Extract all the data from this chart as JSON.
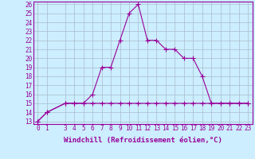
{
  "xlabel": "Windchill (Refroidissement éolien,°C)",
  "background_color": "#cceeff",
  "line_color": "#990099",
  "grid_color": "#aabbcc",
  "x_temp": [
    0,
    1,
    3,
    4,
    5,
    6,
    7,
    8,
    9,
    10,
    11,
    12,
    13,
    14,
    15,
    16,
    17,
    18,
    19,
    20,
    21,
    22,
    23
  ],
  "y_temp": [
    13,
    14,
    15,
    15,
    15,
    16,
    19,
    19,
    22,
    25,
    26,
    22,
    22,
    21,
    21,
    20,
    20,
    18,
    15,
    15,
    15,
    15,
    15
  ],
  "x_wind": [
    0,
    1,
    3,
    4,
    5,
    6,
    7,
    8,
    9,
    10,
    11,
    12,
    13,
    14,
    15,
    16,
    17,
    18,
    19,
    20,
    21,
    22,
    23
  ],
  "y_wind": [
    13,
    14,
    15,
    15,
    15,
    15,
    15,
    15,
    15,
    15,
    15,
    15,
    15,
    15,
    15,
    15,
    15,
    15,
    15,
    15,
    15,
    15,
    15
  ],
  "ylim": [
    13,
    26
  ],
  "xlim": [
    0,
    23
  ],
  "yticks": [
    13,
    14,
    15,
    16,
    17,
    18,
    19,
    20,
    21,
    22,
    23,
    24,
    25,
    26
  ],
  "xticks": [
    0,
    1,
    3,
    4,
    5,
    6,
    7,
    8,
    9,
    10,
    11,
    12,
    13,
    14,
    15,
    16,
    17,
    18,
    19,
    20,
    21,
    22,
    23
  ],
  "marker": "+",
  "marker_size": 4,
  "linewidth": 0.8,
  "xlabel_fontsize": 6.5,
  "tick_fontsize": 5.5
}
